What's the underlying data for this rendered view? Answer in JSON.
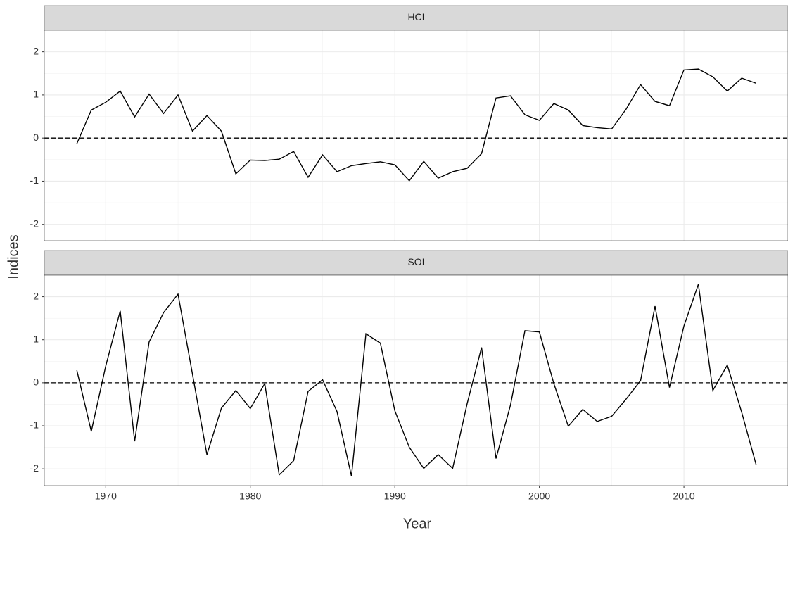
{
  "xlabel": "Year",
  "ylabel": "Indices",
  "chart_data": [
    {
      "type": "line",
      "title": "HCI",
      "color": "#000000",
      "grid": true,
      "hline": 0,
      "x": [
        1968,
        1969,
        1970,
        1971,
        1972,
        1973,
        1974,
        1975,
        1976,
        1977,
        1978,
        1979,
        1980,
        1981,
        1982,
        1983,
        1984,
        1985,
        1986,
        1987,
        1988,
        1989,
        1990,
        1991,
        1992,
        1993,
        1994,
        1995,
        1996,
        1997,
        1998,
        1999,
        2000,
        2001,
        2002,
        2003,
        2004,
        2005,
        2006,
        2007,
        2008,
        2009,
        2010,
        2011,
        2012,
        2013,
        2014,
        2015
      ],
      "values": [
        -0.13,
        0.65,
        0.83,
        1.09,
        0.49,
        1.02,
        0.57,
        1.0,
        0.16,
        0.52,
        0.16,
        -0.83,
        -0.51,
        -0.52,
        -0.49,
        -0.31,
        -0.91,
        -0.39,
        -0.78,
        -0.64,
        -0.59,
        -0.55,
        -0.62,
        -0.99,
        -0.54,
        -0.93,
        -0.78,
        -0.7,
        -0.36,
        0.93,
        0.98,
        0.54,
        0.41,
        0.8,
        0.65,
        0.29,
        0.24,
        0.21,
        0.67,
        1.24,
        0.85,
        0.75,
        1.58,
        1.6,
        1.42,
        1.09,
        1.39,
        1.27
      ],
      "xlim": [
        1965.75,
        2017.2
      ],
      "xticks": [
        1970,
        1980,
        1990,
        2000,
        2010
      ],
      "ylim": [
        -2.38,
        2.5
      ],
      "yticks": [
        -2,
        -1,
        0,
        1,
        2
      ]
    },
    {
      "type": "line",
      "title": "SOI",
      "color": "#000000",
      "grid": true,
      "hline": 0,
      "x": [
        1968,
        1969,
        1970,
        1971,
        1972,
        1973,
        1974,
        1975,
        1976,
        1977,
        1978,
        1979,
        1980,
        1981,
        1982,
        1983,
        1984,
        1985,
        1986,
        1987,
        1988,
        1989,
        1990,
        1991,
        1992,
        1993,
        1994,
        1995,
        1996,
        1997,
        1998,
        1999,
        2000,
        2001,
        2002,
        2003,
        2004,
        2005,
        2006,
        2007,
        2008,
        2009,
        2010,
        2011,
        2012,
        2013,
        2014,
        2015
      ],
      "values": [
        0.29,
        -1.13,
        0.39,
        1.67,
        -1.36,
        0.95,
        1.63,
        2.06,
        0.2,
        -1.67,
        -0.59,
        -0.18,
        -0.6,
        -0.02,
        -2.14,
        -1.81,
        -0.2,
        0.07,
        -0.67,
        -2.17,
        1.14,
        0.92,
        -0.65,
        -1.5,
        -1.99,
        -1.67,
        -1.99,
        -0.49,
        0.82,
        -1.76,
        -0.52,
        1.21,
        1.18,
        -0.02,
        -1.01,
        -0.62,
        -0.9,
        -0.78,
        -0.38,
        0.05,
        1.78,
        -0.11,
        1.32,
        2.29,
        -0.18,
        0.41,
        -0.69,
        -1.91
      ],
      "xlim": [
        1965.75,
        2017.2
      ],
      "xticks": [
        1970,
        1980,
        1990,
        2000,
        2010
      ],
      "ylim": [
        -2.39,
        2.5
      ],
      "yticks": [
        -2,
        -1,
        0,
        1,
        2
      ]
    }
  ]
}
